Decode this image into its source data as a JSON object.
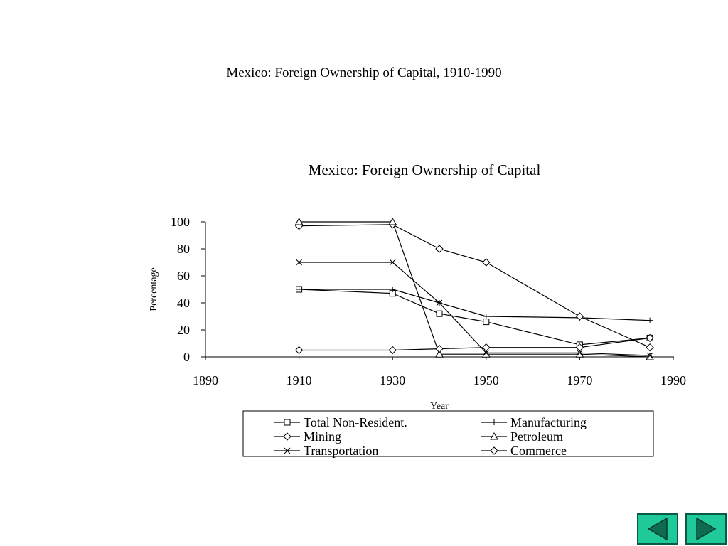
{
  "slide": {
    "title": "Mexico: Foreign Ownership of Capital, 1910-1990"
  },
  "chart_data": {
    "type": "line",
    "title": "Mexico: Foreign Ownership of Capital",
    "xlabel": "Year",
    "ylabel": "Percentage",
    "xlim": [
      1890,
      1990
    ],
    "ylim": [
      0,
      100
    ],
    "xticks": [
      1890,
      1910,
      1930,
      1950,
      1970,
      1990
    ],
    "yticks": [
      0,
      20,
      40,
      60,
      80,
      100
    ],
    "grid": false,
    "legend": "bottom",
    "series": [
      {
        "name": "Total Non-Resident.",
        "marker": "square",
        "points": [
          [
            1910,
            50
          ],
          [
            1930,
            47
          ],
          [
            1940,
            32
          ],
          [
            1950,
            26
          ],
          [
            1970,
            9
          ],
          [
            1985,
            14
          ]
        ]
      },
      {
        "name": "Manufacturing",
        "marker": "plus",
        "points": [
          [
            1910,
            50
          ],
          [
            1930,
            50
          ],
          [
            1940,
            40
          ],
          [
            1950,
            30
          ],
          [
            1970,
            29
          ],
          [
            1985,
            27
          ]
        ]
      },
      {
        "name": "Mining",
        "marker": "diamond",
        "points": [
          [
            1910,
            97
          ],
          [
            1930,
            98
          ],
          [
            1940,
            80
          ],
          [
            1950,
            70
          ],
          [
            1970,
            30
          ],
          [
            1985,
            7
          ]
        ]
      },
      {
        "name": "Petroleum",
        "marker": "triangle",
        "points": [
          [
            1910,
            100
          ],
          [
            1930,
            100
          ],
          [
            1940,
            2
          ],
          [
            1950,
            2
          ],
          [
            1970,
            2
          ],
          [
            1985,
            0
          ]
        ]
      },
      {
        "name": "Transportation",
        "marker": "x",
        "points": [
          [
            1910,
            70
          ],
          [
            1930,
            70
          ],
          [
            1940,
            40
          ],
          [
            1950,
            3
          ],
          [
            1970,
            3
          ],
          [
            1985,
            1
          ]
        ]
      },
      {
        "name": "Commerce",
        "marker": "diamond",
        "points": [
          [
            1910,
            5
          ],
          [
            1930,
            5
          ],
          [
            1940,
            6
          ],
          [
            1950,
            7
          ],
          [
            1970,
            7
          ],
          [
            1985,
            14
          ]
        ]
      }
    ]
  },
  "nav": {
    "prev_icon": "triangle-left-icon",
    "next_icon": "triangle-right-icon",
    "button_color": "#20c99a"
  }
}
